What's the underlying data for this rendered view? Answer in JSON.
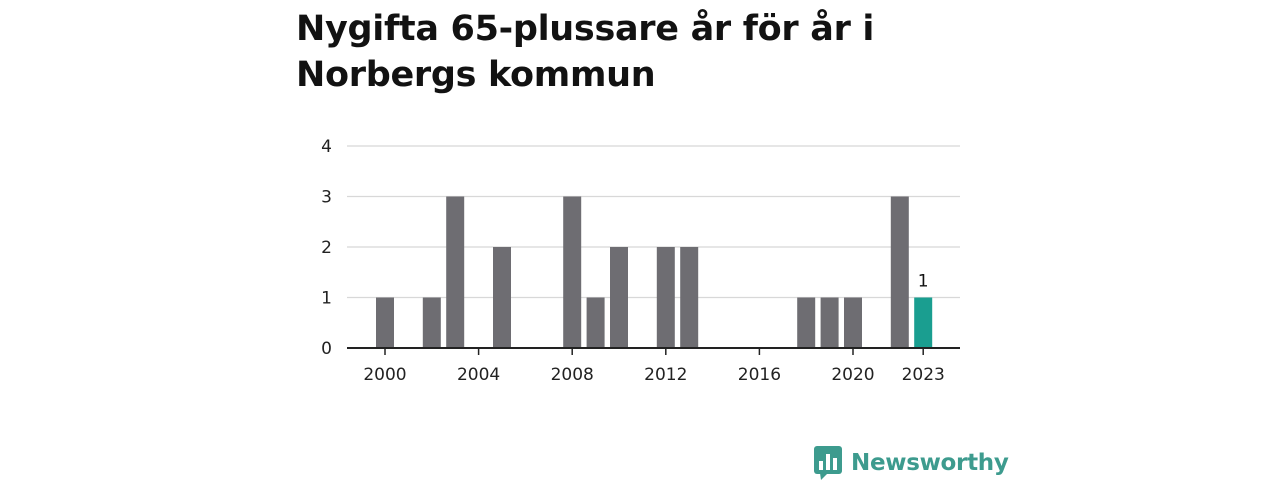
{
  "title": "Nygifta 65-plussare år för år i Norbergs kommun",
  "brand": {
    "name": "Newsworthy",
    "color": "#3d9b8e"
  },
  "colors": {
    "bar": "#6e6d72",
    "highlight": "#1a9e90",
    "grid": "#d8d8d8",
    "axis": "#222222"
  },
  "chart_data": {
    "type": "bar",
    "x": [
      2000,
      2001,
      2002,
      2003,
      2004,
      2005,
      2006,
      2007,
      2008,
      2009,
      2010,
      2011,
      2012,
      2013,
      2014,
      2015,
      2016,
      2017,
      2018,
      2019,
      2020,
      2021,
      2022,
      2023
    ],
    "values": [
      1,
      0,
      1,
      3,
      0,
      2,
      0,
      0,
      3,
      1,
      2,
      0,
      2,
      2,
      0,
      0,
      0,
      0,
      1,
      1,
      1,
      0,
      3,
      1
    ],
    "highlight": 2023,
    "x_ticks": [
      2000,
      2004,
      2008,
      2012,
      2016,
      2020,
      2023
    ],
    "y_ticks": [
      0,
      1,
      2,
      3,
      4
    ],
    "ylim": [
      0,
      4
    ],
    "data_labels": [
      {
        "x": 2023,
        "text": "1"
      }
    ],
    "grid": true,
    "legend": "none"
  }
}
